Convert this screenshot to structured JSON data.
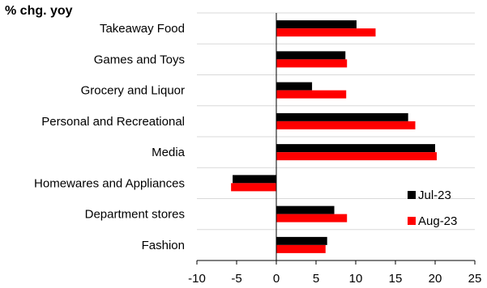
{
  "chart_data": {
    "type": "bar",
    "orientation": "horizontal",
    "unit_label": "% chg. yoy",
    "categories": [
      "Takeaway Food",
      "Games and Toys",
      "Grocery and Liquor",
      "Personal and Recreational",
      "Media",
      "Homewares and Appliances",
      "Department stores",
      "Fashion"
    ],
    "series": [
      {
        "name": "Jul-23",
        "color": "#000000",
        "values": [
          10.1,
          8.7,
          4.5,
          16.6,
          20.0,
          -5.5,
          7.3,
          6.4
        ]
      },
      {
        "name": "Aug-23",
        "color": "#ff0000",
        "values": [
          12.5,
          8.9,
          8.8,
          17.5,
          20.2,
          -5.7,
          8.9,
          6.2
        ]
      }
    ],
    "xlim": [
      -10,
      25
    ],
    "xticks": [
      -10,
      -5,
      0,
      5,
      10,
      15,
      20,
      25
    ],
    "grid": "horizontal-separators",
    "legend_position": "lower-right"
  }
}
